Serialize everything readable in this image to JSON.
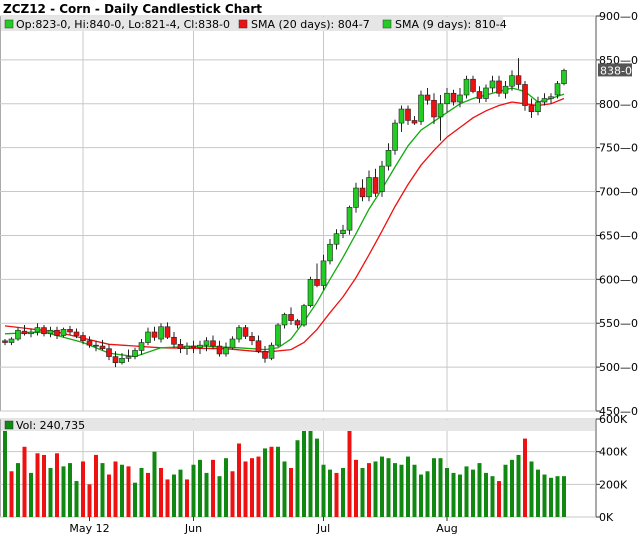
{
  "chart_data": {
    "type": "candlestick",
    "title": "ZCZ12 - Corn - Daily Candlestick Chart",
    "ohlc_label": "Op:823-0, Hi:840-0, Lo:821-4, Cl:838-0",
    "sma20_label": "SMA (20 days): 804-7",
    "sma9_label": "SMA (9 days): 810-4",
    "volume_label": "Vol: 240,735",
    "last_price_label": "838-0",
    "colors": {
      "up": "#22cc22",
      "down": "#ee1111",
      "sma20": "#ee1111",
      "sma9": "#11aa11",
      "vol_up": "#118811",
      "vol_down": "#ee1111",
      "grid": "#c8c8c8",
      "legend_bg": "#e6e6e6"
    },
    "price_axis": {
      "min": 450,
      "max": 900,
      "ticks": [
        900,
        850,
        800,
        750,
        700,
        650,
        600,
        550,
        500,
        450
      ],
      "tick_labels": [
        "900—0",
        "850—0",
        "800—0",
        "750—0",
        "700—0",
        "650—0",
        "600—0",
        "550—0",
        "500—0",
        "450—0"
      ]
    },
    "volume_axis": {
      "min": 0,
      "max": 600000,
      "ticks": [
        600000,
        400000,
        200000,
        0
      ],
      "tick_labels": [
        "600K",
        "400K",
        "200K",
        "0K"
      ]
    },
    "x_labels": [
      {
        "label": "May 12",
        "index": 13
      },
      {
        "label": "Jun",
        "index": 29
      },
      {
        "label": "Jul",
        "index": 49
      },
      {
        "label": "Aug",
        "index": 68
      }
    ],
    "grid_indices": [
      12,
      29,
      49,
      68
    ],
    "candles": [
      [
        530,
        532,
        525,
        528
      ],
      [
        528,
        534,
        525,
        532
      ],
      [
        532,
        545,
        530,
        542
      ],
      [
        541,
        548,
        536,
        538
      ],
      [
        538,
        544,
        534,
        540
      ],
      [
        540,
        550,
        536,
        545
      ],
      [
        545,
        548,
        535,
        538
      ],
      [
        538,
        546,
        534,
        542
      ],
      [
        542,
        546,
        532,
        536
      ],
      [
        536,
        545,
        534,
        543
      ],
      [
        543,
        547,
        537,
        540
      ],
      [
        540,
        544,
        533,
        536
      ],
      [
        536,
        540,
        526,
        530
      ],
      [
        530,
        535,
        522,
        525
      ],
      [
        525,
        530,
        518,
        524
      ],
      [
        524,
        531,
        519,
        521
      ],
      [
        521,
        526,
        508,
        512
      ],
      [
        512,
        518,
        500,
        505
      ],
      [
        505,
        516,
        503,
        510
      ],
      [
        510,
        520,
        506,
        512
      ],
      [
        512,
        522,
        509,
        519
      ],
      [
        519,
        532,
        514,
        528
      ],
      [
        528,
        545,
        525,
        540
      ],
      [
        540,
        546,
        530,
        534
      ],
      [
        532,
        550,
        528,
        546
      ],
      [
        546,
        551,
        532,
        534
      ],
      [
        534,
        540,
        522,
        526
      ],
      [
        526,
        532,
        516,
        521
      ],
      [
        521,
        528,
        514,
        524
      ],
      [
        524,
        530,
        516,
        522
      ],
      [
        522,
        530,
        515,
        525
      ],
      [
        525,
        534,
        518,
        530
      ],
      [
        530,
        536,
        520,
        524
      ],
      [
        524,
        530,
        512,
        515
      ],
      [
        515,
        528,
        512,
        522
      ],
      [
        522,
        535,
        520,
        532
      ],
      [
        532,
        548,
        528,
        545
      ],
      [
        545,
        548,
        532,
        535
      ],
      [
        535,
        540,
        525,
        530
      ],
      [
        530,
        536,
        516,
        518
      ],
      [
        518,
        524,
        505,
        510
      ],
      [
        510,
        528,
        508,
        525
      ],
      [
        525,
        550,
        523,
        548
      ],
      [
        548,
        562,
        544,
        560
      ],
      [
        560,
        568,
        548,
        553
      ],
      [
        553,
        555,
        544,
        548
      ],
      [
        548,
        572,
        546,
        570
      ],
      [
        570,
        603,
        568,
        600
      ],
      [
        600,
        618,
        591,
        593
      ],
      [
        593,
        628,
        588,
        621
      ],
      [
        621,
        646,
        617,
        640
      ],
      [
        640,
        657,
        634,
        652
      ],
      [
        652,
        662,
        647,
        656
      ],
      [
        656,
        684,
        651,
        682
      ],
      [
        682,
        710,
        676,
        704
      ],
      [
        704,
        714,
        689,
        694
      ],
      [
        694,
        724,
        689,
        716
      ],
      [
        716,
        726,
        694,
        698
      ],
      [
        700,
        735,
        694,
        729
      ],
      [
        729,
        755,
        724,
        747
      ],
      [
        747,
        782,
        742,
        778
      ],
      [
        778,
        798,
        768,
        794
      ],
      [
        794,
        798,
        776,
        781
      ],
      [
        781,
        786,
        776,
        778
      ],
      [
        780,
        815,
        776,
        810
      ],
      [
        810,
        818,
        799,
        804
      ],
      [
        804,
        812,
        777,
        785
      ],
      [
        785,
        810,
        758,
        800
      ],
      [
        800,
        818,
        790,
        812
      ],
      [
        812,
        816,
        798,
        802
      ],
      [
        802,
        818,
        796,
        810
      ],
      [
        810,
        832,
        806,
        828
      ],
      [
        828,
        832,
        812,
        814
      ],
      [
        814,
        820,
        801,
        806
      ],
      [
        806,
        822,
        802,
        818
      ],
      [
        818,
        832,
        813,
        826
      ],
      [
        826,
        832,
        808,
        812
      ],
      [
        812,
        826,
        806,
        820
      ],
      [
        820,
        838,
        815,
        832
      ],
      [
        832,
        852,
        817,
        822
      ],
      [
        822,
        826,
        792,
        798
      ],
      [
        798,
        806,
        784,
        791
      ],
      [
        791,
        808,
        787,
        802
      ],
      [
        802,
        812,
        798,
        806
      ],
      [
        806,
        812,
        800,
        808
      ],
      [
        810,
        826,
        806,
        823
      ],
      [
        823,
        840,
        821,
        838
      ]
    ],
    "sma20": [
      [
        0,
        547
      ],
      [
        8,
        540
      ],
      [
        16,
        526
      ],
      [
        24,
        522
      ],
      [
        34,
        521
      ],
      [
        40,
        517
      ],
      [
        44,
        520
      ],
      [
        46,
        528
      ],
      [
        48,
        543
      ],
      [
        50,
        562
      ],
      [
        52,
        580
      ],
      [
        54,
        602
      ],
      [
        56,
        628
      ],
      [
        58,
        655
      ],
      [
        60,
        683
      ],
      [
        62,
        708
      ],
      [
        64,
        730
      ],
      [
        66,
        747
      ],
      [
        68,
        762
      ],
      [
        70,
        773
      ],
      [
        72,
        784
      ],
      [
        74,
        792
      ],
      [
        76,
        798
      ],
      [
        78,
        802
      ],
      [
        80,
        800
      ],
      [
        82,
        798
      ],
      [
        84,
        800
      ],
      [
        86,
        806
      ]
    ],
    "sma9": [
      [
        0,
        538
      ],
      [
        6,
        540
      ],
      [
        12,
        528
      ],
      [
        16,
        516
      ],
      [
        20,
        512
      ],
      [
        24,
        522
      ],
      [
        30,
        524
      ],
      [
        36,
        522
      ],
      [
        40,
        520
      ],
      [
        42,
        522
      ],
      [
        44,
        532
      ],
      [
        46,
        552
      ],
      [
        48,
        574
      ],
      [
        50,
        600
      ],
      [
        52,
        625
      ],
      [
        54,
        652
      ],
      [
        56,
        680
      ],
      [
        58,
        703
      ],
      [
        60,
        728
      ],
      [
        62,
        752
      ],
      [
        64,
        770
      ],
      [
        66,
        780
      ],
      [
        68,
        790
      ],
      [
        70,
        800
      ],
      [
        72,
        806
      ],
      [
        74,
        810
      ],
      [
        76,
        814
      ],
      [
        78,
        818
      ],
      [
        80,
        814
      ],
      [
        82,
        802
      ],
      [
        84,
        806
      ],
      [
        86,
        811
      ]
    ],
    "volume": [
      [
        560000,
        1
      ],
      [
        280000,
        0
      ],
      [
        330000,
        1
      ],
      [
        430000,
        0
      ],
      [
        270000,
        1
      ],
      [
        390000,
        0
      ],
      [
        380000,
        0
      ],
      [
        300000,
        1
      ],
      [
        390000,
        0
      ],
      [
        310000,
        1
      ],
      [
        330000,
        1
      ],
      [
        220000,
        1
      ],
      [
        340000,
        0
      ],
      [
        200000,
        0
      ],
      [
        380000,
        0
      ],
      [
        330000,
        1
      ],
      [
        260000,
        0
      ],
      [
        340000,
        0
      ],
      [
        320000,
        1
      ],
      [
        310000,
        0
      ],
      [
        210000,
        1
      ],
      [
        300000,
        1
      ],
      [
        270000,
        0
      ],
      [
        400000,
        1
      ],
      [
        300000,
        0
      ],
      [
        230000,
        0
      ],
      [
        260000,
        1
      ],
      [
        290000,
        1
      ],
      [
        230000,
        0
      ],
      [
        320000,
        1
      ],
      [
        350000,
        1
      ],
      [
        270000,
        1
      ],
      [
        350000,
        0
      ],
      [
        250000,
        1
      ],
      [
        360000,
        1
      ],
      [
        280000,
        0
      ],
      [
        450000,
        0
      ],
      [
        340000,
        0
      ],
      [
        360000,
        0
      ],
      [
        370000,
        0
      ],
      [
        420000,
        1
      ],
      [
        430000,
        0
      ],
      [
        430000,
        1
      ],
      [
        340000,
        1
      ],
      [
        300000,
        0
      ],
      [
        470000,
        1
      ],
      [
        560000,
        1
      ],
      [
        560000,
        1
      ],
      [
        480000,
        1
      ],
      [
        320000,
        1
      ],
      [
        290000,
        1
      ],
      [
        270000,
        0
      ],
      [
        300000,
        1
      ],
      [
        530000,
        0
      ],
      [
        350000,
        0
      ],
      [
        300000,
        1
      ],
      [
        330000,
        0
      ],
      [
        340000,
        1
      ],
      [
        370000,
        1
      ],
      [
        360000,
        1
      ],
      [
        330000,
        1
      ],
      [
        320000,
        1
      ],
      [
        370000,
        1
      ],
      [
        320000,
        1
      ],
      [
        260000,
        1
      ],
      [
        280000,
        1
      ],
      [
        360000,
        1
      ],
      [
        360000,
        1
      ],
      [
        300000,
        1
      ],
      [
        270000,
        1
      ],
      [
        260000,
        1
      ],
      [
        310000,
        1
      ],
      [
        290000,
        1
      ],
      [
        330000,
        1
      ],
      [
        270000,
        1
      ],
      [
        250000,
        1
      ],
      [
        220000,
        0
      ],
      [
        320000,
        1
      ],
      [
        350000,
        1
      ],
      [
        380000,
        1
      ],
      [
        480000,
        0
      ],
      [
        340000,
        1
      ],
      [
        290000,
        1
      ],
      [
        260000,
        1
      ],
      [
        240000,
        1
      ],
      [
        250000,
        1
      ],
      [
        250000,
        1
      ]
    ]
  }
}
